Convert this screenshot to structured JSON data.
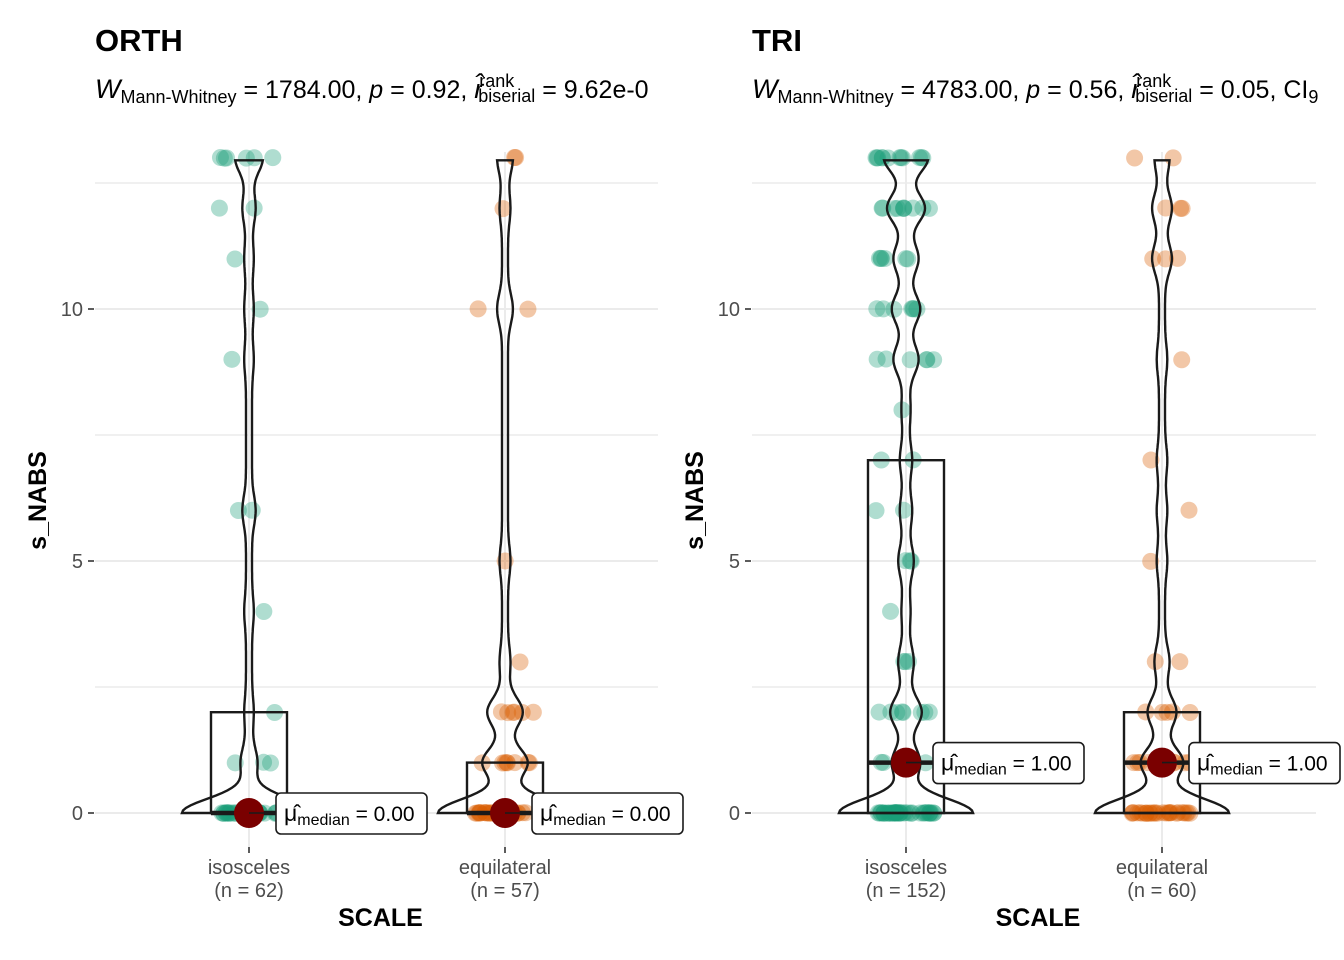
{
  "chart_data": [
    {
      "type": "box+violin+scatter",
      "title": "ORTH",
      "subtitle": {
        "stat_symbol": "W",
        "stat_sub": "Mann-Whitney",
        "stat_value": " = 1784.00, ",
        "p_symbol": "p",
        "p_value": " = 0.92, ",
        "effect_symbol": "r̂",
        "effect_sup": "rank",
        "effect_sub": "biserial",
        "effect_value": " = 9.62e-0"
      },
      "xlabel": "SCALE",
      "ylabel": "s_NABS",
      "ylim": [
        -1.2,
        13.0
      ],
      "yticks": [
        0,
        5,
        10
      ],
      "grid": true,
      "groups": [
        {
          "category": "isosceles",
          "n_label": "(n = 62)",
          "color": "#1b9e77",
          "box": {
            "q1": 0,
            "median": 0,
            "q3": 2
          },
          "median_label_prefix": "μ̂",
          "median_label_sub": "median",
          "median_label_value": " = 0.00",
          "median_value": 0,
          "points": [
            0,
            0,
            0,
            0,
            0,
            0,
            0,
            0,
            0,
            0,
            0,
            0,
            0,
            0,
            0,
            0,
            0,
            0,
            0,
            0,
            0,
            0,
            0,
            0,
            0,
            0,
            0,
            0,
            0,
            0,
            0,
            0,
            0,
            0,
            0,
            1,
            1,
            1,
            2,
            4,
            6,
            6,
            9,
            10,
            11,
            12,
            12,
            13,
            13,
            13,
            13,
            13,
            13
          ]
        },
        {
          "category": "equilateral",
          "n_label": "(n = 57)",
          "color": "#d95f02",
          "box": {
            "q1": 0,
            "median": 0,
            "q3": 1
          },
          "median_label_prefix": "μ̂",
          "median_label_sub": "median",
          "median_label_value": " = 0.00",
          "median_value": 0,
          "points": [
            0,
            0,
            0,
            0,
            0,
            0,
            0,
            0,
            0,
            0,
            0,
            0,
            0,
            0,
            0,
            0,
            0,
            0,
            0,
            0,
            0,
            0,
            0,
            0,
            0,
            0,
            1,
            1,
            1,
            1,
            1,
            1,
            1,
            1,
            2,
            2,
            2,
            2,
            2,
            2,
            3,
            5,
            10,
            10,
            12,
            13,
            13
          ]
        }
      ]
    },
    {
      "type": "box+violin+scatter",
      "title": "TRI",
      "subtitle": {
        "stat_symbol": "W",
        "stat_sub": "Mann-Whitney",
        "stat_value": " = 4783.00, ",
        "p_symbol": "p",
        "p_value": " = 0.56, ",
        "effect_symbol": "r̂",
        "effect_sup": "rank",
        "effect_sub": "biserial",
        "effect_value": " = 0.05, CI",
        "ci_sub": "9"
      },
      "xlabel": "SCALE",
      "ylabel": "s_NABS",
      "ylim": [
        -1.2,
        13.0
      ],
      "yticks": [
        0,
        5,
        10
      ],
      "grid": true,
      "groups": [
        {
          "category": "isosceles",
          "n_label": "(n = 152)",
          "color": "#1b9e77",
          "box": {
            "q1": 0,
            "median": 1,
            "q3": 7
          },
          "median_label_prefix": "μ̂",
          "median_label_sub": "median",
          "median_label_value": " = 1.00",
          "median_value": 1,
          "points": [
            0,
            0,
            0,
            0,
            0,
            0,
            0,
            0,
            0,
            0,
            0,
            0,
            0,
            0,
            0,
            0,
            0,
            0,
            0,
            0,
            0,
            0,
            0,
            0,
            0,
            0,
            0,
            0,
            0,
            0,
            0,
            0,
            0,
            0,
            0,
            0,
            0,
            0,
            0,
            0,
            1,
            1,
            1,
            1,
            1,
            1,
            1,
            2,
            2,
            2,
            2,
            2,
            2,
            2,
            2,
            3,
            3,
            3,
            4,
            5,
            5,
            5,
            6,
            6,
            7,
            7,
            8,
            9,
            9,
            9,
            9,
            9,
            9,
            10,
            10,
            10,
            10,
            10,
            10,
            10,
            11,
            11,
            11,
            11,
            11,
            11,
            12,
            12,
            12,
            12,
            12,
            12,
            12,
            12,
            12,
            12,
            13,
            13,
            13,
            13,
            13,
            13,
            13,
            13,
            13,
            13,
            13,
            13
          ]
        },
        {
          "category": "equilateral",
          "n_label": "(n = 60)",
          "color": "#d95f02",
          "box": {
            "q1": 0,
            "median": 1,
            "q3": 2
          },
          "median_label_prefix": "μ̂",
          "median_label_sub": "median",
          "median_label_value": " = 1.00",
          "median_value": 1,
          "points": [
            0,
            0,
            0,
            0,
            0,
            0,
            0,
            0,
            0,
            0,
            0,
            0,
            0,
            0,
            0,
            0,
            0,
            0,
            0,
            0,
            0,
            0,
            0,
            0,
            0,
            0,
            0,
            0,
            1,
            1,
            1,
            1,
            1,
            1,
            1,
            1,
            2,
            2,
            2,
            2,
            2,
            3,
            3,
            5,
            6,
            7,
            9,
            11,
            11,
            11,
            12,
            12,
            12,
            13,
            13
          ]
        }
      ]
    }
  ]
}
